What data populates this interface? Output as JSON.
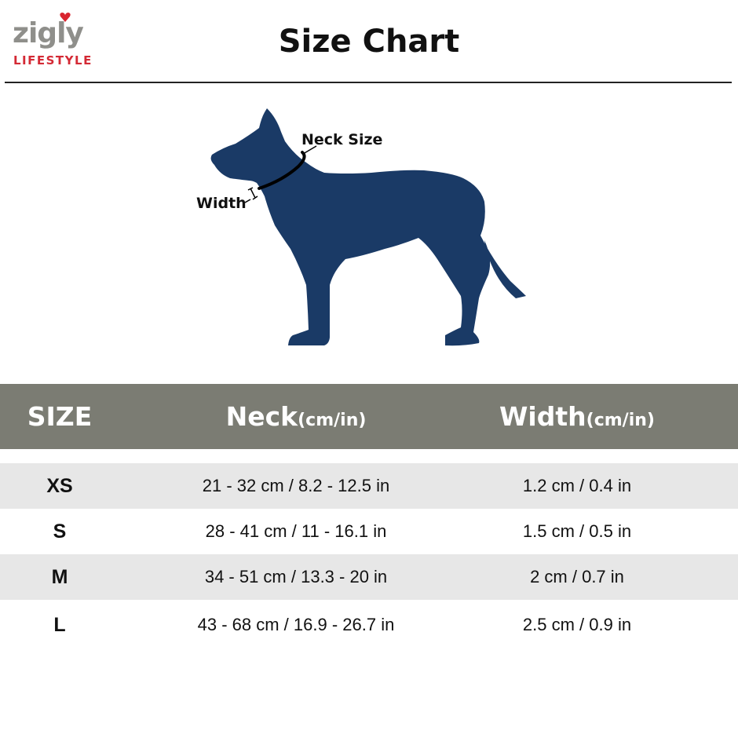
{
  "brand": {
    "name": "zigly",
    "tagline": "LIFESTYLE",
    "colors": {
      "wordmark": "#8f8f8b",
      "accent": "#d42a35"
    }
  },
  "title": "Size Chart",
  "illustration": {
    "neck_label": "Neck Size",
    "width_label": "Width",
    "dog_color": "#1a3a66"
  },
  "table": {
    "header_color": "#7b7c73",
    "headers": [
      {
        "main": "SIZE",
        "unit": ""
      },
      {
        "main": "Neck",
        "unit": "(cm/in)"
      },
      {
        "main": "Width",
        "unit": "(cm/in)"
      }
    ],
    "rows": [
      {
        "size": "XS",
        "neck": "21 - 32 cm / 8.2 - 12.5 in",
        "width": "1.2 cm / 0.4 in"
      },
      {
        "size": "S",
        "neck": "28 - 41 cm / 11 - 16.1 in",
        "width": "1.5 cm / 0.5 in"
      },
      {
        "size": "M",
        "neck": "34 - 51 cm / 13.3 - 20 in",
        "width": "2 cm / 0.7 in"
      },
      {
        "size": "L",
        "neck": "43 - 68 cm / 16.9 - 26.7 in",
        "width": "2.5 cm / 0.9 in"
      }
    ]
  }
}
